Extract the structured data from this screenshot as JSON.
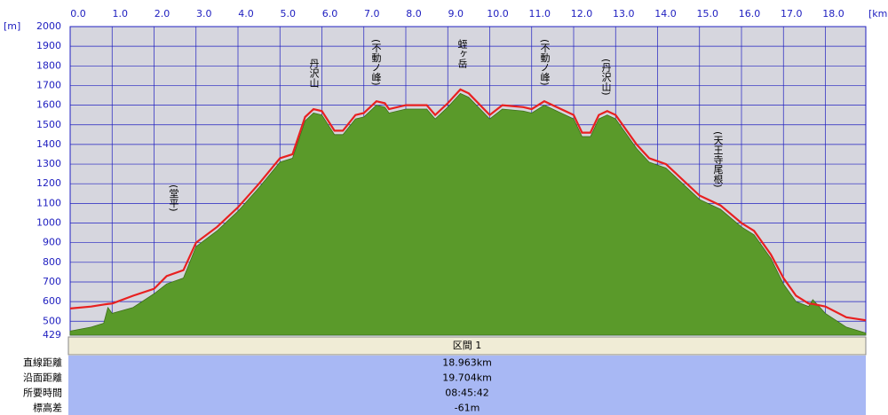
{
  "chart_data": {
    "type": "area",
    "x_unit": "[km]",
    "y_unit": "[m]",
    "x": [
      0,
      0.5,
      0.8,
      0.9,
      1.0,
      1.5,
      2.0,
      2.3,
      2.7,
      3.0,
      3.5,
      4.0,
      4.5,
      5.0,
      5.3,
      5.6,
      5.8,
      6.0,
      6.3,
      6.5,
      6.8,
      7.0,
      7.3,
      7.5,
      7.6,
      8.0,
      8.5,
      8.7,
      9.0,
      9.3,
      9.5,
      10.0,
      10.3,
      10.8,
      11.0,
      11.3,
      11.5,
      12.0,
      12.2,
      12.4,
      12.6,
      12.8,
      13.0,
      13.5,
      13.8,
      14.2,
      14.6,
      15.0,
      15.5,
      16.0,
      16.3,
      16.7,
      17.0,
      17.3,
      17.6,
      17.7,
      18.0,
      18.5,
      18.963
    ],
    "series": [
      {
        "color": "#e82020",
        "values": [
          565,
          575,
          585,
          588,
          590,
          630,
          665,
          730,
          760,
          900,
          980,
          1080,
          1200,
          1330,
          1350,
          1540,
          1580,
          1570,
          1470,
          1470,
          1550,
          1560,
          1620,
          1610,
          1580,
          1600,
          1600,
          1550,
          1610,
          1680,
          1660,
          1550,
          1600,
          1590,
          1580,
          1620,
          1600,
          1550,
          1460,
          1460,
          1550,
          1570,
          1550,
          1400,
          1330,
          1300,
          1220,
          1140,
          1090,
          1000,
          960,
          840,
          720,
          630,
          590,
          588,
          575,
          520,
          505
        ]
      },
      {
        "color": "#5a9a2a",
        "values": [
          450,
          470,
          490,
          570,
          540,
          570,
          640,
          690,
          720,
          880,
          960,
          1060,
          1180,
          1310,
          1330,
          1520,
          1560,
          1550,
          1450,
          1450,
          1530,
          1540,
          1600,
          1590,
          1560,
          1580,
          1580,
          1530,
          1590,
          1660,
          1640,
          1530,
          1580,
          1570,
          1560,
          1600,
          1580,
          1530,
          1440,
          1440,
          1530,
          1550,
          1530,
          1380,
          1310,
          1280,
          1200,
          1120,
          1070,
          980,
          940,
          820,
          690,
          600,
          575,
          610,
          540,
          470,
          440
        ]
      }
    ],
    "xlim": [
      0,
      18.963
    ],
    "ylim": [
      429,
      2000
    ],
    "xticks": [
      {
        "value": 0,
        "label": "0.0"
      },
      {
        "value": 1,
        "label": "1.0"
      },
      {
        "value": 2,
        "label": "2.0"
      },
      {
        "value": 3,
        "label": "3.0"
      },
      {
        "value": 4,
        "label": "4.0"
      },
      {
        "value": 5,
        "label": "5.0"
      },
      {
        "value": 6,
        "label": "6.0"
      },
      {
        "value": 7,
        "label": "7.0"
      },
      {
        "value": 8,
        "label": "8.0"
      },
      {
        "value": 9,
        "label": "9.0"
      },
      {
        "value": 10,
        "label": "10.0"
      },
      {
        "value": 11,
        "label": "11.0"
      },
      {
        "value": 12,
        "label": "12.0"
      },
      {
        "value": 13,
        "label": "13.0"
      },
      {
        "value": 14,
        "label": "14.0"
      },
      {
        "value": 15,
        "label": "15.0"
      },
      {
        "value": 16,
        "label": "16.0"
      },
      {
        "value": 17,
        "label": "17.0"
      },
      {
        "value": 18,
        "label": "18.0"
      }
    ],
    "yticks": [
      429,
      500,
      600,
      700,
      800,
      900,
      1000,
      1100,
      1200,
      1300,
      1400,
      1500,
      1600,
      1700,
      1800,
      1900,
      2000
    ],
    "grid": true,
    "annotations": [
      "(堂平)",
      "丹沢山",
      "(不動ノ峰)",
      "蛭ヶ岳",
      "(不動ノ峰)",
      "(丹沢山)",
      "(天王寺尾根)"
    ]
  },
  "table": {
    "header": "区間 1",
    "rows": [
      [
        "直線距離",
        "18.963km"
      ],
      [
        "沿面距離",
        "19.704km"
      ],
      [
        "所要時間",
        "08:45:42"
      ],
      [
        "標高差",
        "-61m"
      ]
    ]
  }
}
